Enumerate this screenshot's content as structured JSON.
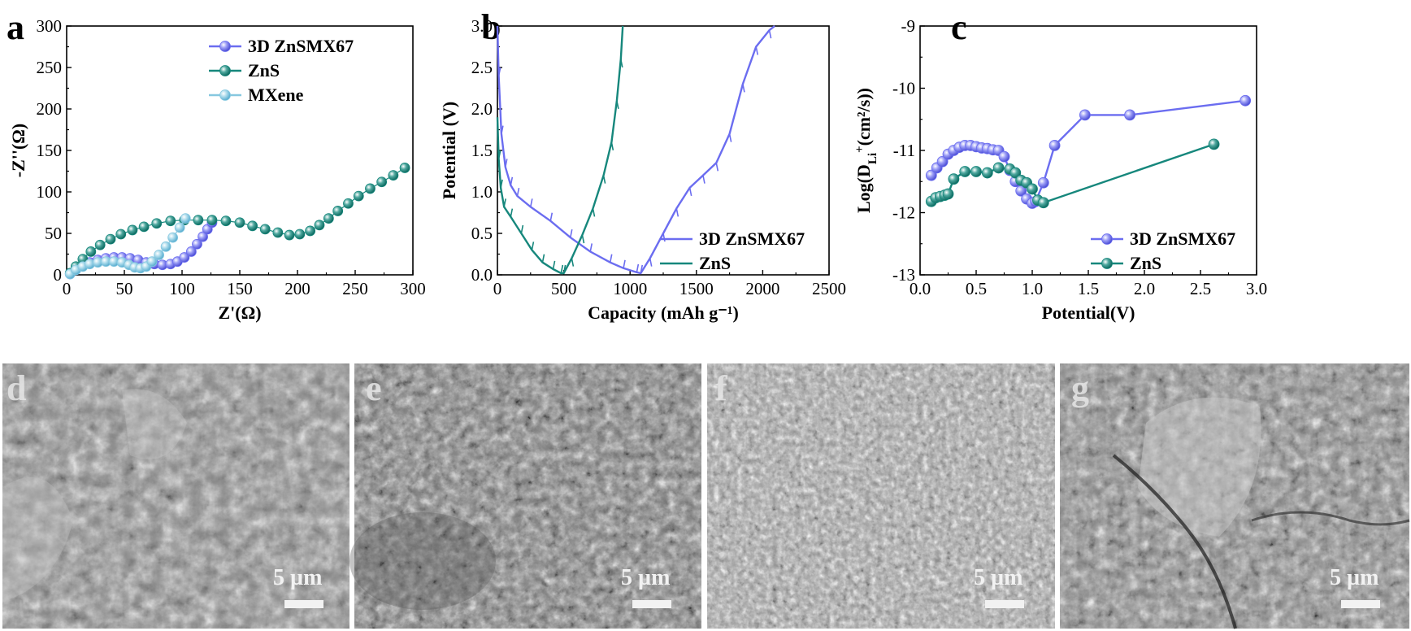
{
  "colors": {
    "zns_smx67": "#6b6df0",
    "zns": "#16877c",
    "mxene": "#86c8e0",
    "sem_base": "#8e8e8e"
  },
  "chart_data": [
    {
      "id": "a",
      "panel_label": "a",
      "type": "scatter",
      "title": "",
      "xlabel": "Z'(Ω)",
      "ylabel": "-Z''(Ω)",
      "xlim": [
        0,
        300
      ],
      "ylim": [
        0,
        300
      ],
      "xticks": [
        "0",
        "50",
        "100",
        "150",
        "200",
        "250",
        "300"
      ],
      "yticks": [
        "0",
        "50",
        "100",
        "150",
        "200",
        "250",
        "300"
      ],
      "legend_position": "top-right",
      "series": [
        {
          "name": "3D ZnSMX67",
          "color_key": "zns_smx67",
          "x": [
            3,
            8,
            14,
            20,
            27,
            34,
            41,
            48,
            55,
            62,
            69,
            76,
            83,
            90,
            96,
            102,
            108,
            113,
            118,
            122,
            126
          ],
          "y": [
            1,
            6,
            11,
            15,
            18,
            20,
            21,
            21,
            20,
            18,
            15,
            13,
            12,
            13,
            16,
            21,
            28,
            37,
            46,
            55,
            63
          ]
        },
        {
          "name": "ZnS",
          "color_key": "zns",
          "x": [
            3,
            8,
            14,
            21,
            29,
            38,
            47,
            57,
            67,
            78,
            90,
            102,
            114,
            126,
            138,
            150,
            161,
            172,
            183,
            193,
            202,
            211,
            219,
            227,
            235,
            244,
            253,
            263,
            273,
            283,
            293
          ],
          "y": [
            2,
            10,
            19,
            28,
            36,
            43,
            49,
            54,
            58,
            62,
            65,
            66,
            66,
            66,
            65,
            63,
            59,
            55,
            51,
            48,
            49,
            53,
            60,
            68,
            77,
            86,
            95,
            104,
            112,
            120,
            129
          ]
        },
        {
          "name": "MXene",
          "color_key": "mxene",
          "x": [
            3,
            8,
            14,
            20,
            27,
            34,
            41,
            48,
            54,
            59,
            64,
            69,
            74,
            80,
            86,
            92,
            98,
            103
          ],
          "y": [
            1,
            6,
            10,
            13,
            15,
            16,
            16,
            15,
            12,
            9,
            8,
            10,
            16,
            24,
            34,
            45,
            57,
            68
          ]
        }
      ]
    },
    {
      "id": "b",
      "panel_label": "b",
      "type": "line",
      "title": "",
      "xlabel": "Capacity (mAh g⁻¹)",
      "ylabel": "Potential (V)",
      "xlim": [
        0,
        2500
      ],
      "ylim": [
        0,
        3.0
      ],
      "xticks": [
        "0",
        "500",
        "1000",
        "1500",
        "2000",
        "2500"
      ],
      "yticks": [
        "0.0",
        "0.5",
        "1.0",
        "1.5",
        "2.0",
        "2.5",
        "3.0"
      ],
      "legend_position": "bottom-right",
      "series": [
        {
          "name": "3D ZnSMX67",
          "color_key": "zns_smx67",
          "x": [
            0,
            10,
            30,
            60,
            100,
            150,
            250,
            400,
            550,
            700,
            850,
            950,
            1050,
            1080,
            1150,
            1250,
            1350,
            1450,
            1550,
            1650,
            1750,
            1850,
            1950,
            2050,
            2090
          ],
          "y": [
            3.0,
            2.4,
            1.7,
            1.3,
            1.08,
            0.95,
            0.82,
            0.65,
            0.45,
            0.28,
            0.15,
            0.08,
            0.03,
            0.02,
            0.2,
            0.5,
            0.8,
            1.05,
            1.2,
            1.35,
            1.7,
            2.3,
            2.75,
            2.95,
            3.0
          ]
        },
        {
          "name": "ZnS",
          "color_key": "zns",
          "x": [
            0,
            10,
            25,
            50,
            100,
            180,
            260,
            340,
            420,
            480,
            500,
            560,
            640,
            720,
            800,
            860,
            900,
            930,
            945
          ],
          "y": [
            1.9,
            1.4,
            1.05,
            0.82,
            0.7,
            0.5,
            0.3,
            0.15,
            0.07,
            0.02,
            0.02,
            0.2,
            0.48,
            0.8,
            1.2,
            1.6,
            2.1,
            2.6,
            3.0
          ]
        }
      ]
    },
    {
      "id": "c",
      "panel_label": "c",
      "type": "line",
      "title": "",
      "xlabel": "Potential(V)",
      "ylabel": "Log(Dₗᵢ⁺(cm²/s))",
      "ylabel_main": "Log(D",
      "ylabel_sub": "Li",
      "ylabel_sup": "+",
      "ylabel_rest": "(cm²/s))",
      "xlim": [
        0,
        3.0
      ],
      "ylim": [
        -13,
        -9
      ],
      "xticks": [
        "0.0",
        "0.5",
        "1.0",
        "1.5",
        "2.0",
        "2.5",
        "3.0"
      ],
      "yticks": [
        "-13",
        "-12",
        "-11",
        "-10",
        "-9"
      ],
      "legend_position": "bottom-right",
      "series": [
        {
          "name": "3D ZnSMX67",
          "color_key": "zns_smx67",
          "x": [
            0.1,
            0.15,
            0.2,
            0.25,
            0.3,
            0.35,
            0.4,
            0.45,
            0.5,
            0.55,
            0.6,
            0.65,
            0.7,
            0.75,
            0.8,
            0.85,
            0.9,
            0.95,
            1.0,
            1.03,
            1.1,
            1.2,
            1.47,
            1.87,
            2.9
          ],
          "y": [
            -11.4,
            -11.28,
            -11.18,
            -11.06,
            -11.0,
            -10.95,
            -10.92,
            -10.92,
            -10.94,
            -10.96,
            -10.97,
            -10.99,
            -11.0,
            -11.1,
            -11.32,
            -11.5,
            -11.65,
            -11.78,
            -11.85,
            -11.82,
            -11.52,
            -10.92,
            -10.43,
            -10.43,
            -10.2
          ]
        },
        {
          "name": "ZnS",
          "color_key": "zns",
          "x": [
            0.1,
            0.14,
            0.18,
            0.22,
            0.25,
            0.3,
            0.4,
            0.5,
            0.6,
            0.7,
            0.8,
            0.85,
            0.9,
            0.95,
            1.0,
            1.05,
            1.1,
            2.62
          ],
          "y": [
            -11.82,
            -11.76,
            -11.74,
            -11.72,
            -11.7,
            -11.46,
            -11.34,
            -11.34,
            -11.36,
            -11.28,
            -11.3,
            -11.36,
            -11.48,
            -11.52,
            -11.62,
            -11.8,
            -11.84,
            -10.9
          ]
        }
      ]
    }
  ],
  "images": [
    {
      "label": "d",
      "scale_bar": "5 µm"
    },
    {
      "label": "e",
      "scale_bar": "5 µm"
    },
    {
      "label": "f",
      "scale_bar": "5 µm"
    },
    {
      "label": "g",
      "scale_bar": "5 µm"
    }
  ]
}
